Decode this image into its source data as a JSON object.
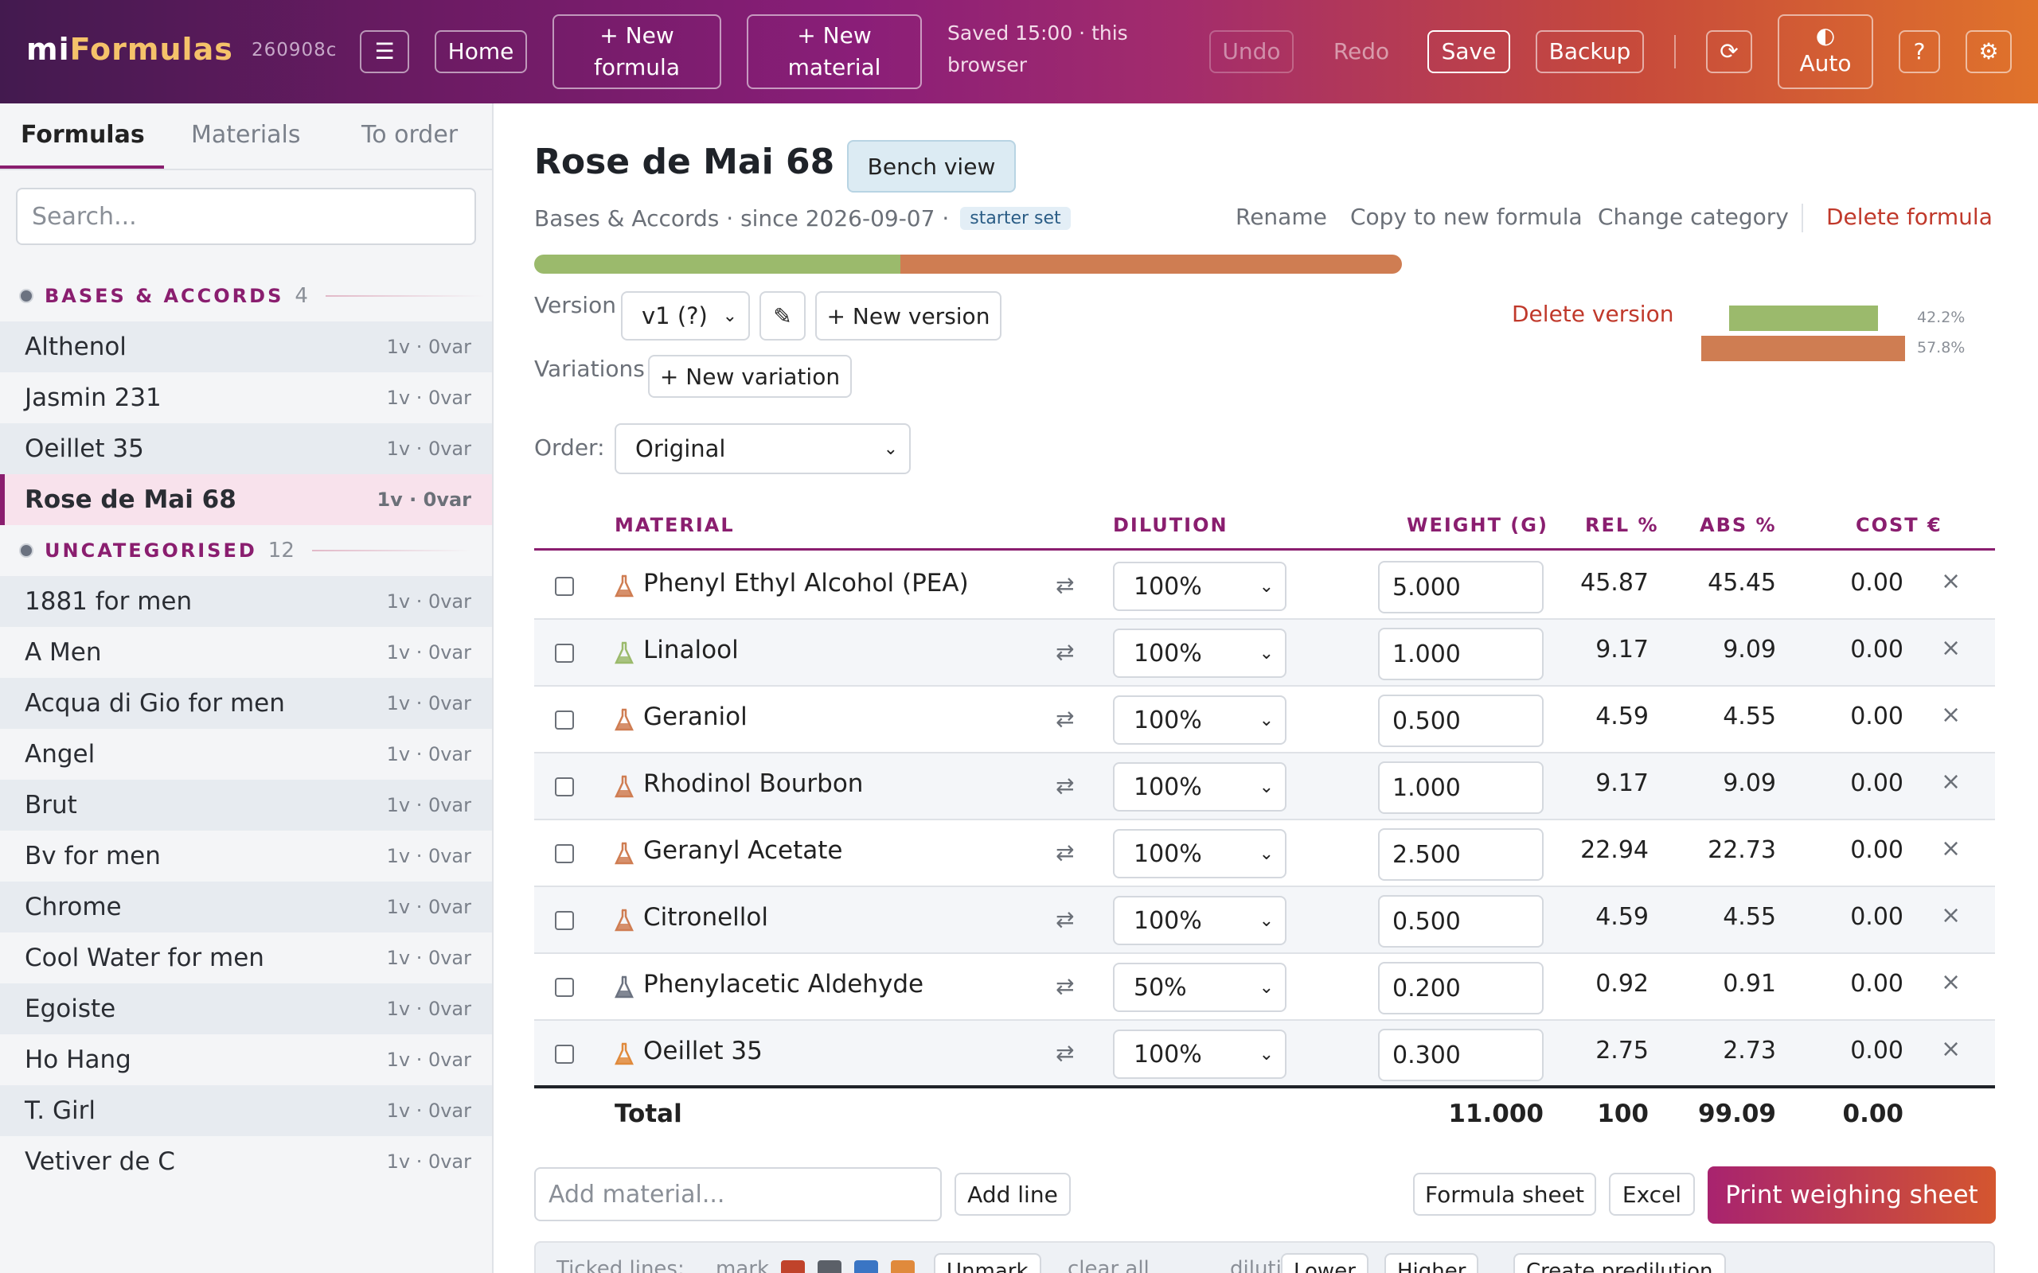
{
  "header": {
    "brand_part1": "mi",
    "brand_part2": "Formulas",
    "build": "260908c",
    "menu_icon": "☰",
    "home": "Home",
    "new_formula": "+ New formula",
    "new_material": "+ New material",
    "saved_status": "Saved 15:00 · this browser",
    "undo": "Undo",
    "redo": "Redo",
    "save": "Save",
    "backup": "Backup",
    "refresh_icon": "⟳",
    "theme_icon": "◐",
    "theme_label": "Auto",
    "help": "?",
    "settings_icon": "⚙"
  },
  "sidebar": {
    "tabs": [
      "Formulas",
      "Materials",
      "To order"
    ],
    "search_placeholder": "Search...",
    "groups": [
      {
        "name": "BASES & ACCORDS",
        "count": "4",
        "items": [
          {
            "name": "Althenol",
            "meta": "1v · 0var"
          },
          {
            "name": "Jasmin 231",
            "meta": "1v · 0var"
          },
          {
            "name": "Oeillet 35",
            "meta": "1v · 0var"
          },
          {
            "name": "Rose de Mai 68",
            "meta": "1v · 0var"
          }
        ]
      },
      {
        "name": "UNCATEGORISED",
        "count": "12",
        "items": [
          {
            "name": "1881 for men",
            "meta": "1v · 0var"
          },
          {
            "name": "A Men",
            "meta": "1v · 0var"
          },
          {
            "name": "Acqua di Gio for men",
            "meta": "1v · 0var"
          },
          {
            "name": "Angel",
            "meta": "1v · 0var"
          },
          {
            "name": "Brut",
            "meta": "1v · 0var"
          },
          {
            "name": "Bv for men",
            "meta": "1v · 0var"
          },
          {
            "name": "Chrome",
            "meta": "1v · 0var"
          },
          {
            "name": "Cool Water for men",
            "meta": "1v · 0var"
          },
          {
            "name": "Egoiste",
            "meta": "1v · 0var"
          },
          {
            "name": "Ho Hang",
            "meta": "1v · 0var"
          },
          {
            "name": "T. Girl",
            "meta": "1v · 0var"
          },
          {
            "name": "Vetiver de C",
            "meta": "1v · 0var"
          }
        ]
      }
    ]
  },
  "formula": {
    "title": "Rose de Mai 68",
    "bench_view": "Bench view",
    "subline": "Bases & Accords · since 2026-09-07 ·",
    "tag": "starter set",
    "rename": "Rename",
    "copy": "Copy to new formula",
    "change_category": "Change category",
    "delete_formula": "Delete formula",
    "ratio": [
      {
        "fraction": 0.422,
        "color": "#9bba6c"
      },
      {
        "fraction": 0.578,
        "color": "#cf7d52"
      }
    ],
    "version_label": "Version",
    "version_value": "v1 (?)",
    "edit_icon": "✎",
    "new_version": "+ New version",
    "delete_version": "Delete version",
    "mini_bars": [
      {
        "label": "42.2%",
        "fraction": 0.422,
        "color": "#9bba6c"
      },
      {
        "label": "57.8%",
        "fraction": 0.578,
        "color": "#cf7d52"
      }
    ],
    "variations_label": "Variations",
    "new_variation": "+ New variation",
    "order_label": "Order:",
    "order_value": "Original"
  },
  "table": {
    "headers": {
      "material": "MATERIAL",
      "dilution": "DILUTION",
      "weight": "WEIGHT (G)",
      "rel": "REL %",
      "abs": "ABS %",
      "cost": "COST €"
    },
    "swap_icon": "⇄",
    "remove_icon": "×",
    "rows": [
      {
        "name": "Phenyl Ethyl Alcohol (PEA)",
        "icon_color": "#cf7d52",
        "dilution": "100%",
        "weight": "5.000",
        "rel": "45.87",
        "abs": "45.45",
        "cost": "0.00"
      },
      {
        "name": "Linalool",
        "icon_color": "#9bba6c",
        "dilution": "100%",
        "weight": "1.000",
        "rel": "9.17",
        "abs": "9.09",
        "cost": "0.00"
      },
      {
        "name": "Geraniol",
        "icon_color": "#cf7d52",
        "dilution": "100%",
        "weight": "0.500",
        "rel": "4.59",
        "abs": "4.55",
        "cost": "0.00"
      },
      {
        "name": "Rhodinol Bourbon",
        "icon_color": "#cf7d52",
        "dilution": "100%",
        "weight": "1.000",
        "rel": "9.17",
        "abs": "9.09",
        "cost": "0.00"
      },
      {
        "name": "Geranyl Acetate",
        "icon_color": "#cf7d52",
        "dilution": "100%",
        "weight": "2.500",
        "rel": "22.94",
        "abs": "22.73",
        "cost": "0.00"
      },
      {
        "name": "Citronellol",
        "icon_color": "#cf7d52",
        "dilution": "100%",
        "weight": "0.500",
        "rel": "4.59",
        "abs": "4.55",
        "cost": "0.00"
      },
      {
        "name": "Phenylacetic Aldehyde",
        "icon_color": "#6b7280",
        "dilution": "50%",
        "weight": "0.200",
        "rel": "0.92",
        "abs": "0.91",
        "cost": "0.00"
      },
      {
        "name": "Oeillet 35",
        "icon_color": "#e08a3c",
        "dilution": "100%",
        "weight": "0.300",
        "rel": "2.75",
        "abs": "2.73",
        "cost": "0.00"
      }
    ],
    "total": {
      "label": "Total",
      "weight": "11.000",
      "rel": "100",
      "abs": "99.09",
      "cost": "0.00"
    }
  },
  "footer": {
    "add_placeholder": "Add material...",
    "add_line": "Add line",
    "formula_sheet": "Formula sheet",
    "excel": "Excel",
    "print": "Print weighing sheet",
    "ticked_label": "Ticked lines:",
    "mark_label": "mark",
    "mark_colors": [
      "#c0432b",
      "#5b6068",
      "#3a75c4",
      "#e08a3c"
    ],
    "unmark": "Unmark",
    "clear_all": "clear all",
    "dilution_label": "dilution",
    "lower": "Lower",
    "higher": "Higher",
    "create_predilution": "Create predilution"
  }
}
